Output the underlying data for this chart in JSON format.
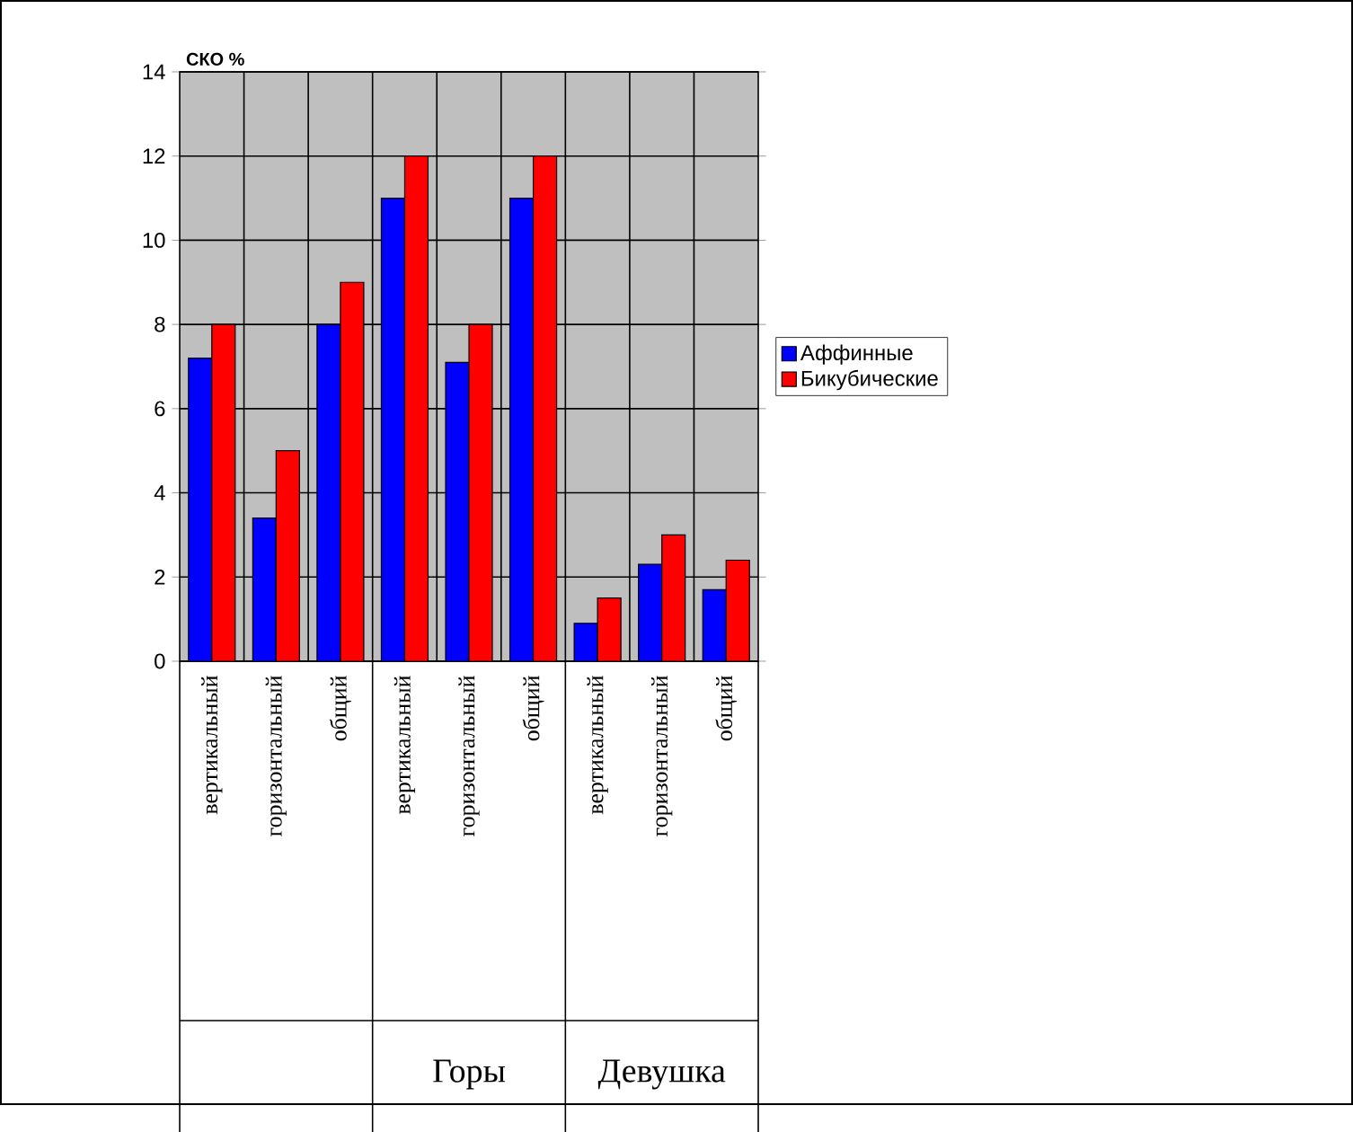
{
  "chart_data": {
    "type": "bar",
    "ylabel": "СКО %",
    "categories": [
      "вертикальный",
      "горизонтальный",
      "общий",
      "вертикальный",
      "горизонтальный",
      "общий",
      "вертикальный",
      "горизонтальный",
      "общий"
    ],
    "series": [
      {
        "name": "Аффинные",
        "color": "#0000ff",
        "values": [
          7.2,
          3.4,
          8,
          11,
          7.1,
          11,
          0.9,
          2.3,
          1.7
        ]
      },
      {
        "name": "Бикубические",
        "color": "#ff0000",
        "values": [
          8,
          5,
          9,
          12,
          8,
          12,
          1.5,
          3,
          2.4
        ]
      }
    ],
    "annotations": [
      "Горы",
      "Девушка"
    ],
    "ylim": [
      0,
      14
    ],
    "yticks": [
      0,
      2,
      4,
      6,
      8,
      10,
      12,
      14
    ],
    "grid": true,
    "legend": "right"
  }
}
